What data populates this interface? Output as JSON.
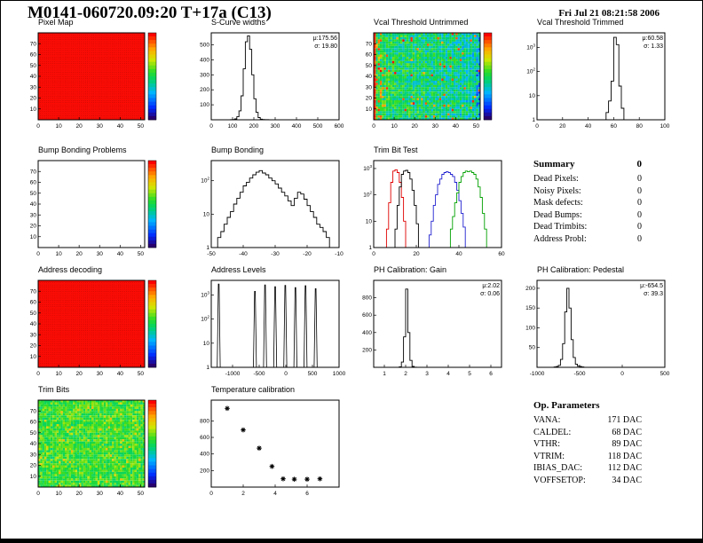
{
  "page": {
    "title": "M0141-060720.09:20 T+17a (C13)",
    "datetime": "Fri Jul 21 08:21:58 2006"
  },
  "summary": {
    "title": "Summary",
    "value": "0",
    "rows": [
      {
        "label": "Dead Pixels:",
        "value": "0"
      },
      {
        "label": "Noisy Pixels:",
        "value": "0"
      },
      {
        "label": "Mask defects:",
        "value": "0"
      },
      {
        "label": "Dead Bumps:",
        "value": "0"
      },
      {
        "label": "Dead Trimbits:",
        "value": "0"
      },
      {
        "label": "Address Probl:",
        "value": "0"
      }
    ]
  },
  "op_parameters": {
    "title": "Op. Parameters",
    "rows": [
      {
        "label": "VANA:",
        "value": "171 DAC"
      },
      {
        "label": "CALDEL:",
        "value": "68 DAC"
      },
      {
        "label": "VTHR:",
        "value": "89 DAC"
      },
      {
        "label": "VTRIM:",
        "value": "118 DAC"
      },
      {
        "label": "IBIAS_DAC:",
        "value": "112 DAC"
      },
      {
        "label": "VOFFSETOP:",
        "value": "34 DAC"
      }
    ]
  },
  "colors": {
    "hist_line": "#000000",
    "trimbit_series": [
      "#e00000",
      "#000000",
      "#2020d0",
      "#00a000"
    ],
    "heatmap_max": "#fa0c05"
  },
  "chart_data": [
    {
      "id": "pixel-map",
      "type": "heatmap",
      "title": "Pixel Map",
      "fill": "uniform",
      "seed": 1,
      "x_range": [
        0,
        52
      ],
      "y_range": [
        0,
        80
      ],
      "xticks": [
        0,
        10,
        20,
        30,
        40,
        50
      ],
      "yticks": [
        10,
        20,
        30,
        40,
        50,
        60,
        70
      ],
      "colorbar": true
    },
    {
      "id": "s-curve-widths",
      "type": "histogram",
      "title": "S-Curve widths",
      "x_range": [
        0,
        600
      ],
      "y_range": [
        0,
        580
      ],
      "xticks": [
        0,
        100,
        200,
        300,
        400,
        500,
        600
      ],
      "yticks": [
        100,
        200,
        300,
        400,
        500
      ],
      "stats": [
        "μ:175.56",
        "σ: 19.80"
      ],
      "bins": {
        "x0": 90,
        "bw": 10,
        "counts": [
          1,
          2,
          6,
          20,
          60,
          160,
          340,
          520,
          560,
          470,
          300,
          140,
          50,
          15,
          4,
          2,
          1,
          1
        ]
      }
    },
    {
      "id": "vcal-threshold-untrimmed",
      "type": "heatmap",
      "title": "Vcal Threshold Untrimmed",
      "fill": "vcal-noise",
      "seed": 7,
      "x_range": [
        0,
        52
      ],
      "y_range": [
        0,
        80
      ],
      "xticks": [
        0,
        10,
        20,
        30,
        40,
        50
      ],
      "yticks": [
        10,
        20,
        30,
        40,
        50,
        60,
        70
      ],
      "colorbar": true
    },
    {
      "id": "vcal-threshold-trimmed",
      "type": "histogram",
      "ylog": true,
      "title": "Vcal Threshold Trimmed",
      "x_range": [
        0,
        100
      ],
      "y_range": [
        1,
        4000
      ],
      "xticks": [
        0,
        20,
        40,
        60,
        80,
        100
      ],
      "yticks": [
        1,
        10,
        100,
        1000
      ],
      "stats": [
        "μ:60.58",
        "σ: 1.33"
      ],
      "bins": {
        "x0": 52,
        "bw": 2,
        "counts": [
          1,
          2,
          6,
          40,
          2600,
          1300,
          25,
          3
        ]
      }
    },
    {
      "id": "bump-bonding-problems",
      "type": "heatmap",
      "title": "Bump Bonding Problems",
      "fill": "empty",
      "seed": 3,
      "x_range": [
        0,
        52
      ],
      "y_range": [
        0,
        80
      ],
      "xticks": [
        0,
        10,
        20,
        30,
        40,
        50
      ],
      "yticks": [
        10,
        20,
        30,
        40,
        50,
        60,
        70
      ],
      "colorbar": true
    },
    {
      "id": "bump-bonding",
      "type": "histogram",
      "ylog": true,
      "title": "Bump Bonding",
      "x_range": [
        -50,
        -10
      ],
      "y_range": [
        1,
        400
      ],
      "xticks": [
        -50,
        -40,
        -30,
        -20,
        -10
      ],
      "yticks": [
        1,
        10,
        100
      ],
      "bins": {
        "x0": -49,
        "bw": 1,
        "counts": [
          1,
          2,
          3,
          5,
          8,
          12,
          20,
          30,
          45,
          70,
          90,
          120,
          150,
          180,
          200,
          170,
          150,
          120,
          100,
          80,
          60,
          45,
          35,
          25,
          18,
          30,
          45,
          40,
          28,
          18,
          12,
          8,
          5,
          4,
          3,
          2,
          1,
          1
        ]
      }
    },
    {
      "id": "trim-bit-test",
      "type": "multi-histogram",
      "ylog": true,
      "title": "Trim Bit Test",
      "x_range": [
        0,
        60
      ],
      "y_range": [
        1,
        2000
      ],
      "xticks": [
        0,
        20,
        40,
        60
      ],
      "yticks": [
        1,
        10,
        100,
        1000
      ],
      "series": [
        {
          "color": "#e00000",
          "x0": 6,
          "bw": 1,
          "counts": [
            5,
            50,
            300,
            800,
            900,
            700,
            300,
            80,
            10
          ]
        },
        {
          "color": "#000000",
          "x0": 10,
          "bw": 1,
          "counts": [
            5,
            40,
            200,
            600,
            800,
            850,
            700,
            400,
            150,
            40,
            8
          ]
        },
        {
          "color": "#2020d0",
          "x0": 26,
          "bw": 1,
          "counts": [
            3,
            10,
            40,
            100,
            250,
            400,
            600,
            700,
            750,
            700,
            600,
            500,
            300,
            150,
            60,
            20,
            6
          ]
        },
        {
          "color": "#00a000",
          "x0": 36,
          "bw": 1,
          "counts": [
            5,
            15,
            50,
            120,
            300,
            500,
            700,
            800,
            750,
            800,
            700,
            600,
            400,
            200,
            80,
            20,
            5
          ]
        }
      ]
    },
    {
      "id": "address-decoding",
      "type": "heatmap",
      "title": "Address decoding",
      "fill": "uniform",
      "seed": 4,
      "x_range": [
        0,
        52
      ],
      "y_range": [
        0,
        80
      ],
      "xticks": [
        0,
        10,
        20,
        30,
        40,
        50
      ],
      "yticks": [
        10,
        20,
        30,
        40,
        50,
        60,
        70
      ],
      "colorbar": true
    },
    {
      "id": "address-levels",
      "type": "spikes",
      "ylog": true,
      "title": "Address Levels",
      "x_range": [
        -1400,
        1000
      ],
      "y_range": [
        1,
        4000
      ],
      "xticks": [
        -1000,
        -500,
        0,
        500,
        1000
      ],
      "yticks": [
        1,
        10,
        100,
        1000
      ],
      "spikes": [
        [
          -1260,
          2800
        ],
        [
          -580,
          1400
        ],
        [
          -390,
          2600
        ],
        [
          -200,
          2200
        ],
        [
          -10,
          2500
        ],
        [
          180,
          2000
        ],
        [
          370,
          2400
        ],
        [
          560,
          1800
        ]
      ]
    },
    {
      "id": "ph-calibration-gain",
      "type": "histogram",
      "title": "PH Calibration: Gain",
      "x_range": [
        0.5,
        6.5
      ],
      "y_range": [
        0,
        1000
      ],
      "xticks": [
        1,
        2,
        3,
        4,
        5,
        6
      ],
      "yticks": [
        200,
        400,
        600,
        800
      ],
      "stats": [
        "μ:2.02",
        "σ: 0.06"
      ],
      "bins": {
        "x0": 1.7,
        "bw": 0.1,
        "counts": [
          5,
          60,
          350,
          900,
          400,
          80,
          10,
          2
        ]
      }
    },
    {
      "id": "ph-calibration-pedestal",
      "type": "histogram",
      "title": "PH Calibration: Pedestal",
      "x_range": [
        -1000,
        500
      ],
      "y_range": [
        0,
        220
      ],
      "xticks": [
        -1000,
        -500,
        0,
        500
      ],
      "yticks": [
        50,
        100,
        150,
        200
      ],
      "stats": [
        "μ:-654.5",
        "σ: 39.3"
      ],
      "bins": {
        "x0": -800,
        "bw": 25,
        "counts": [
          1,
          2,
          5,
          20,
          60,
          140,
          200,
          150,
          70,
          25,
          8,
          3,
          2,
          1
        ]
      }
    },
    {
      "id": "trim-bits",
      "type": "heatmap",
      "title": "Trim Bits",
      "fill": "trim-noise",
      "seed": 11,
      "x_range": [
        0,
        52
      ],
      "y_range": [
        0,
        80
      ],
      "xticks": [
        0,
        10,
        20,
        30,
        40,
        50
      ],
      "yticks": [
        10,
        20,
        30,
        40,
        50,
        60,
        70
      ],
      "colorbar": true
    },
    {
      "id": "temperature-calibration",
      "type": "scatter",
      "title": "Temperature calibration",
      "x_range": [
        0,
        8
      ],
      "y_range": [
        0,
        1050
      ],
      "xticks": [
        0,
        2,
        4,
        6
      ],
      "yticks": [
        200,
        400,
        600,
        800
      ],
      "points": [
        [
          1,
          950
        ],
        [
          2,
          690
        ],
        [
          3,
          470
        ],
        [
          3.8,
          250
        ],
        [
          4.5,
          100
        ],
        [
          5.2,
          95
        ],
        [
          6,
          95
        ],
        [
          6.8,
          100
        ]
      ]
    }
  ]
}
